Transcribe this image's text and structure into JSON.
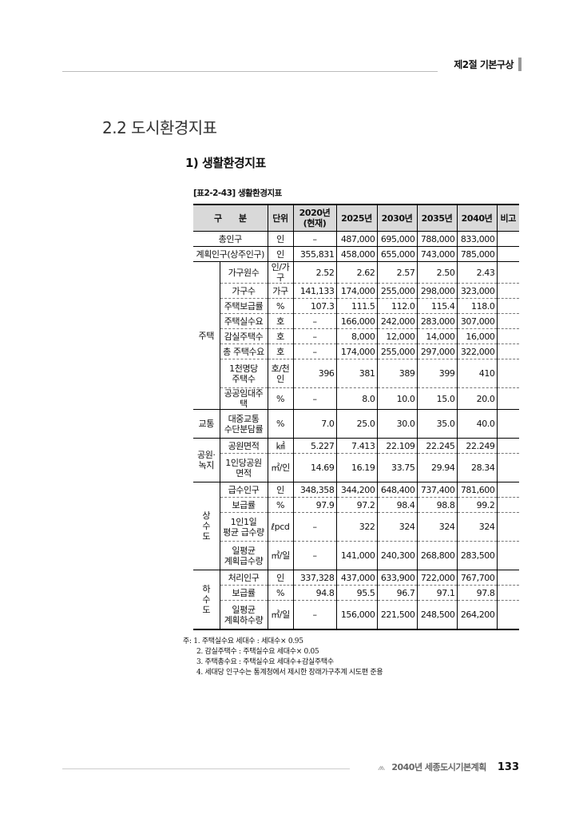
{
  "header": {
    "chapter": "제2절 기본구상"
  },
  "section_title": "2.2 도시환경지표",
  "subsection_title": "1) 생활환경지표",
  "table_caption": "[표2-2-43] 생활환경지표",
  "table": {
    "headers": [
      "구　　분",
      "단위",
      "2020년\n(현재)",
      "2025년",
      "2030년",
      "2035년",
      "2040년",
      "비고"
    ],
    "top_rows": [
      {
        "item": "총인구",
        "unit": "인",
        "values": [
          "-",
          "487,000",
          "695,000",
          "788,000",
          "833,000"
        ]
      },
      {
        "item": "계획인구(상주인구)",
        "unit": "인",
        "values": [
          "355,831",
          "458,000",
          "655,000",
          "743,000",
          "785,000"
        ]
      }
    ],
    "groups": [
      {
        "label": "주택",
        "rows": [
          {
            "item": "가구원수",
            "unit": "인/가구",
            "values": [
              "2.52",
              "2.62",
              "2.57",
              "2.50",
              "2.43"
            ]
          },
          {
            "item": "가구수",
            "unit": "가구",
            "values": [
              "141,133",
              "174,000",
              "255,000",
              "298,000",
              "323,000"
            ]
          },
          {
            "item": "주택보급률",
            "unit": "%",
            "values": [
              "107.3",
              "111.5",
              "112.0",
              "115.4",
              "118.0"
            ]
          },
          {
            "item": "주택실수요",
            "unit": "호",
            "values": [
              "-",
              "166,000",
              "242,000",
              "283,000",
              "307,000"
            ]
          },
          {
            "item": "감실주택수",
            "unit": "호",
            "values": [
              "-",
              "8,000",
              "12,000",
              "14,000",
              "16,000"
            ]
          },
          {
            "item": "총 주택수요",
            "unit": "호",
            "values": [
              "-",
              "174,000",
              "255,000",
              "297,000",
              "322,000"
            ]
          },
          {
            "item": "1천명당\n주택수",
            "unit": "호/천인",
            "values": [
              "396",
              "381",
              "389",
              "399",
              "410"
            ],
            "tall": true
          },
          {
            "item": "공공임대주택",
            "unit": "%",
            "values": [
              "-",
              "8.0",
              "10.0",
              "15.0",
              "20.0"
            ]
          }
        ]
      },
      {
        "label": "교통",
        "rows": [
          {
            "item": "대중교통\n수단분담률",
            "unit": "%",
            "values": [
              "7.0",
              "25.0",
              "30.0",
              "35.0",
              "40.0"
            ],
            "tall": true
          }
        ]
      },
      {
        "label": "공원·\n녹지",
        "rows": [
          {
            "item": "공원면적",
            "unit": "㎢",
            "values": [
              "5.227",
              "7.413",
              "22.109",
              "22.245",
              "22.249"
            ]
          },
          {
            "item": "1인당공원\n면적",
            "unit": "㎡/인",
            "values": [
              "14.69",
              "16.19",
              "33.75",
              "29.94",
              "28.34"
            ],
            "tall": true
          }
        ]
      },
      {
        "label": "상\n수\n도",
        "rows": [
          {
            "item": "급수인구",
            "unit": "인",
            "values": [
              "348,358",
              "344,200",
              "648,400",
              "737,400",
              "781,600"
            ]
          },
          {
            "item": "보급률",
            "unit": "%",
            "values": [
              "97.9",
              "97.2",
              "98.4",
              "98.8",
              "99.2"
            ]
          },
          {
            "item": "1인1일\n평균 급수량",
            "unit": "ℓpcd",
            "values": [
              "-",
              "322",
              "324",
              "324",
              "324"
            ],
            "tall": true
          },
          {
            "item": "일평균\n계획급수량",
            "unit": "㎥/일",
            "values": [
              "-",
              "141,000",
              "240,300",
              "268,800",
              "283,500"
            ],
            "tall": true
          }
        ]
      },
      {
        "label": "하\n수\n도",
        "rows": [
          {
            "item": "처리인구",
            "unit": "인",
            "values": [
              "337,328",
              "437,000",
              "633,900",
              "722,000",
              "767,700"
            ]
          },
          {
            "item": "보급률",
            "unit": "%",
            "values": [
              "94.8",
              "95.5",
              "96.7",
              "97.1",
              "97.8"
            ]
          },
          {
            "item": "일평균\n계획하수량",
            "unit": "㎥/일",
            "values": [
              "-",
              "156,000",
              "221,500",
              "248,500",
              "264,200"
            ],
            "tall": true
          }
        ]
      }
    ]
  },
  "notes": [
    "주: 1. 주택실수요 세대수 : 세대수× 0.95",
    "2. 감실주택수 : 주택실수요 세대수× 0.05",
    "3. 주택총수요 : 주택실수요 세대수+감실주택수",
    "4. 세대당 인구수는 통계청에서 제시한 장래가구추계 시도편 준용"
  ],
  "footer": {
    "logo_icon": "mountain-logo-icon",
    "title": "2040년 세종도시기본계획",
    "page": "133"
  }
}
